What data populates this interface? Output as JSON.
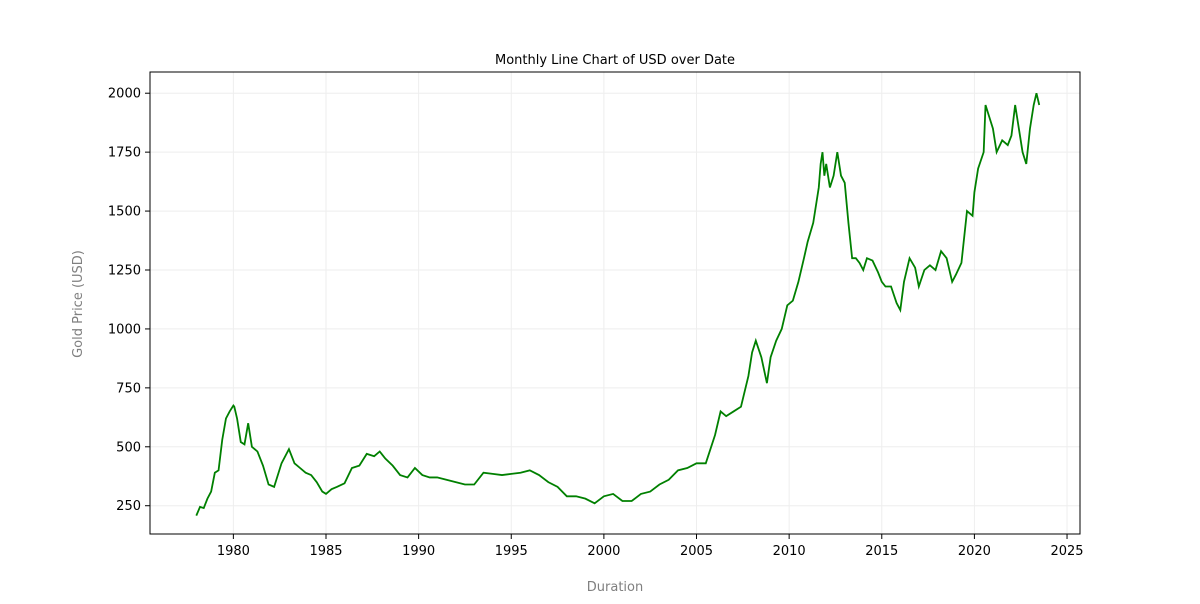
{
  "chart_data": {
    "type": "line",
    "title": "Monthly Line Chart of USD over Date",
    "xlabel": "Duration",
    "ylabel": "Gold Price (USD)",
    "xlim": [
      1975.5,
      2025.7
    ],
    "ylim": [
      130,
      2090
    ],
    "xticks": [
      1980,
      1985,
      1990,
      1995,
      2000,
      2005,
      2010,
      2015,
      2020,
      2025
    ],
    "xtick_labels": [
      "1980",
      "1985",
      "1990",
      "1995",
      "2000",
      "2005",
      "2010",
      "2015",
      "2020",
      "2025"
    ],
    "yticks": [
      250,
      500,
      750,
      1000,
      1250,
      1500,
      1750,
      2000
    ],
    "ytick_labels": [
      "250",
      "500",
      "750",
      "1000",
      "1250",
      "1500",
      "1750",
      "2000"
    ],
    "grid": true,
    "line_color": "#008000",
    "axis_label_color": "#808080",
    "series": [
      {
        "name": "",
        "x": [
          1978.0,
          1978.2,
          1978.4,
          1978.6,
          1978.8,
          1979.0,
          1979.2,
          1979.4,
          1979.6,
          1979.8,
          1980.0,
          1980.05,
          1980.2,
          1980.4,
          1980.6,
          1980.8,
          1981.0,
          1981.3,
          1981.6,
          1981.9,
          1982.2,
          1982.6,
          1983.0,
          1983.3,
          1983.6,
          1983.9,
          1984.2,
          1984.5,
          1984.8,
          1985.0,
          1985.3,
          1985.6,
          1986.0,
          1986.4,
          1986.8,
          1987.2,
          1987.6,
          1987.9,
          1988.2,
          1988.6,
          1989.0,
          1989.4,
          1989.8,
          1990.2,
          1990.6,
          1991.0,
          1991.5,
          1992.0,
          1992.5,
          1993.0,
          1993.5,
          1994.0,
          1994.5,
          1995.0,
          1995.5,
          1996.0,
          1996.5,
          1997.0,
          1997.5,
          1998.0,
          1998.5,
          1999.0,
          1999.5,
          2000.0,
          2000.5,
          2001.0,
          2001.5,
          2002.0,
          2002.5,
          2003.0,
          2003.5,
          2004.0,
          2004.5,
          2005.0,
          2005.5,
          2006.0,
          2006.3,
          2006.6,
          2007.0,
          2007.4,
          2007.8,
          2008.0,
          2008.2,
          2008.5,
          2008.8,
          2009.0,
          2009.3,
          2009.6,
          2009.9,
          2010.2,
          2010.5,
          2010.8,
          2011.0,
          2011.3,
          2011.6,
          2011.7,
          2011.8,
          2011.9,
          2012.0,
          2012.2,
          2012.4,
          2012.6,
          2012.8,
          2013.0,
          2013.2,
          2013.4,
          2013.6,
          2013.8,
          2014.0,
          2014.2,
          2014.5,
          2014.8,
          2015.0,
          2015.2,
          2015.5,
          2015.8,
          2016.0,
          2016.2,
          2016.5,
          2016.8,
          2017.0,
          2017.3,
          2017.6,
          2017.9,
          2018.2,
          2018.5,
          2018.8,
          2019.0,
          2019.3,
          2019.6,
          2019.9,
          2020.0,
          2020.2,
          2020.5,
          2020.6,
          2020.8,
          2021.0,
          2021.2,
          2021.5,
          2021.8,
          2022.0,
          2022.2,
          2022.4,
          2022.6,
          2022.8,
          2023.0,
          2023.2,
          2023.35,
          2023.5
        ],
        "values": [
          208,
          245,
          240,
          280,
          310,
          390,
          400,
          530,
          620,
          650,
          675,
          670,
          620,
          520,
          510,
          600,
          500,
          480,
          420,
          340,
          330,
          430,
          490,
          430,
          410,
          390,
          380,
          350,
          310,
          300,
          320,
          330,
          345,
          410,
          420,
          470,
          460,
          480,
          450,
          420,
          380,
          370,
          410,
          380,
          370,
          370,
          360,
          350,
          340,
          340,
          390,
          385,
          380,
          385,
          390,
          400,
          380,
          350,
          330,
          290,
          290,
          280,
          260,
          290,
          300,
          270,
          270,
          300,
          310,
          340,
          360,
          400,
          410,
          430,
          430,
          550,
          650,
          630,
          650,
          670,
          800,
          900,
          950,
          880,
          770,
          880,
          950,
          1000,
          1100,
          1120,
          1200,
          1300,
          1370,
          1450,
          1600,
          1700,
          1750,
          1650,
          1700,
          1600,
          1650,
          1750,
          1650,
          1620,
          1450,
          1300,
          1300,
          1280,
          1250,
          1300,
          1290,
          1240,
          1200,
          1180,
          1180,
          1110,
          1080,
          1200,
          1300,
          1260,
          1180,
          1250,
          1270,
          1250,
          1330,
          1300,
          1200,
          1230,
          1280,
          1500,
          1480,
          1580,
          1680,
          1750,
          1950,
          1900,
          1850,
          1750,
          1800,
          1780,
          1820,
          1950,
          1850,
          1750,
          1700,
          1850,
          1950,
          2000,
          1950
        ]
      }
    ]
  }
}
